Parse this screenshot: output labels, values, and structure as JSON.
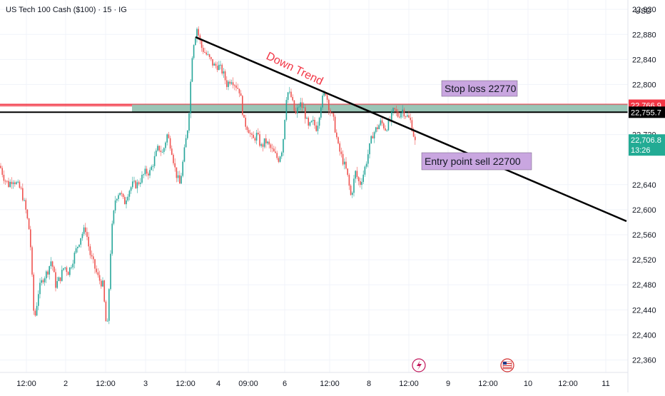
{
  "header": {
    "symbol_title": "US Tech 100 Cash ($100) · 15 · IG",
    "currency": "USD"
  },
  "colors": {
    "up": "#26a69a",
    "down": "#ef5350",
    "stop_label_bg": "#c9a6e0",
    "zone_fill": "#8fbfae",
    "red_line": "#f23645",
    "trend_text": "#f23645"
  },
  "chart_data": {
    "type": "candlestick",
    "ylim": [
      22340,
      22935
    ],
    "y_ticks": [
      22920,
      22880,
      22840,
      22800,
      22720,
      22640,
      22600,
      22560,
      22520,
      22480,
      22440,
      22400,
      22360
    ],
    "x_axis_labels": [
      "12:00",
      "2",
      "12:00",
      "3",
      "12:00",
      "4",
      "09:00",
      "6",
      "12:00",
      "8",
      "12:00",
      "9",
      "12:00",
      "10",
      "12:00",
      "11"
    ],
    "price_badges": [
      {
        "label": "22,766.9",
        "style": "red"
      },
      {
        "label": "22,755.7",
        "style": "black"
      },
      {
        "label": "22,706.8",
        "sub": "13:26",
        "style": "green"
      }
    ],
    "levels": [
      {
        "price": 22766.9,
        "kind": "stop"
      },
      {
        "price": 22755.7,
        "kind": "entry-zone"
      }
    ],
    "annotations": {
      "trend": "Down Trend",
      "stop": "Stop loss 22770",
      "entry": "Entry point sell  22700"
    },
    "close_path": [
      [
        0,
        22670
      ],
      [
        6,
        22650
      ],
      [
        12,
        22640
      ],
      [
        18,
        22650
      ],
      [
        24,
        22640
      ],
      [
        30,
        22630
      ],
      [
        36,
        22600
      ],
      [
        42,
        22560
      ],
      [
        48,
        22420
      ],
      [
        54,
        22470
      ],
      [
        60,
        22490
      ],
      [
        66,
        22500
      ],
      [
        72,
        22520
      ],
      [
        78,
        22480
      ],
      [
        84,
        22490
      ],
      [
        90,
        22510
      ],
      [
        96,
        22500
      ],
      [
        102,
        22520
      ],
      [
        108,
        22540
      ],
      [
        114,
        22560
      ],
      [
        120,
        22570
      ],
      [
        126,
        22530
      ],
      [
        132,
        22510
      ],
      [
        138,
        22490
      ],
      [
        144,
        22480
      ],
      [
        150,
        22400
      ],
      [
        156,
        22560
      ],
      [
        162,
        22620
      ],
      [
        168,
        22630
      ],
      [
        174,
        22610
      ],
      [
        180,
        22630
      ],
      [
        186,
        22640
      ],
      [
        192,
        22640
      ],
      [
        198,
        22650
      ],
      [
        204,
        22660
      ],
      [
        210,
        22660
      ],
      [
        216,
        22680
      ],
      [
        222,
        22700
      ],
      [
        228,
        22690
      ],
      [
        234,
        22720
      ],
      [
        240,
        22700
      ],
      [
        246,
        22660
      ],
      [
        252,
        22640
      ],
      [
        258,
        22690
      ],
      [
        264,
        22740
      ],
      [
        270,
        22860
      ],
      [
        276,
        22890
      ],
      [
        282,
        22860
      ],
      [
        288,
        22850
      ],
      [
        294,
        22840
      ],
      [
        300,
        22830
      ],
      [
        306,
        22830
      ],
      [
        312,
        22820
      ],
      [
        318,
        22800
      ],
      [
        324,
        22810
      ],
      [
        330,
        22800
      ],
      [
        336,
        22790
      ],
      [
        342,
        22740
      ],
      [
        348,
        22730
      ],
      [
        354,
        22710
      ],
      [
        360,
        22720
      ],
      [
        366,
        22700
      ],
      [
        372,
        22710
      ],
      [
        378,
        22700
      ],
      [
        384,
        22690
      ],
      [
        390,
        22680
      ],
      [
        396,
        22700
      ],
      [
        402,
        22790
      ],
      [
        408,
        22780
      ],
      [
        414,
        22750
      ],
      [
        420,
        22770
      ],
      [
        426,
        22760
      ],
      [
        432,
        22730
      ],
      [
        438,
        22740
      ],
      [
        444,
        22730
      ],
      [
        450,
        22770
      ],
      [
        456,
        22790
      ],
      [
        462,
        22760
      ],
      [
        468,
        22740
      ],
      [
        474,
        22700
      ],
      [
        480,
        22680
      ],
      [
        486,
        22660
      ],
      [
        492,
        22620
      ],
      [
        498,
        22660
      ],
      [
        504,
        22640
      ],
      [
        510,
        22660
      ],
      [
        516,
        22690
      ],
      [
        522,
        22720
      ],
      [
        528,
        22730
      ],
      [
        534,
        22740
      ],
      [
        540,
        22730
      ],
      [
        546,
        22740
      ],
      [
        552,
        22760
      ],
      [
        558,
        22750
      ],
      [
        564,
        22760
      ],
      [
        570,
        22750
      ],
      [
        576,
        22740
      ],
      [
        582,
        22706.8
      ]
    ]
  }
}
